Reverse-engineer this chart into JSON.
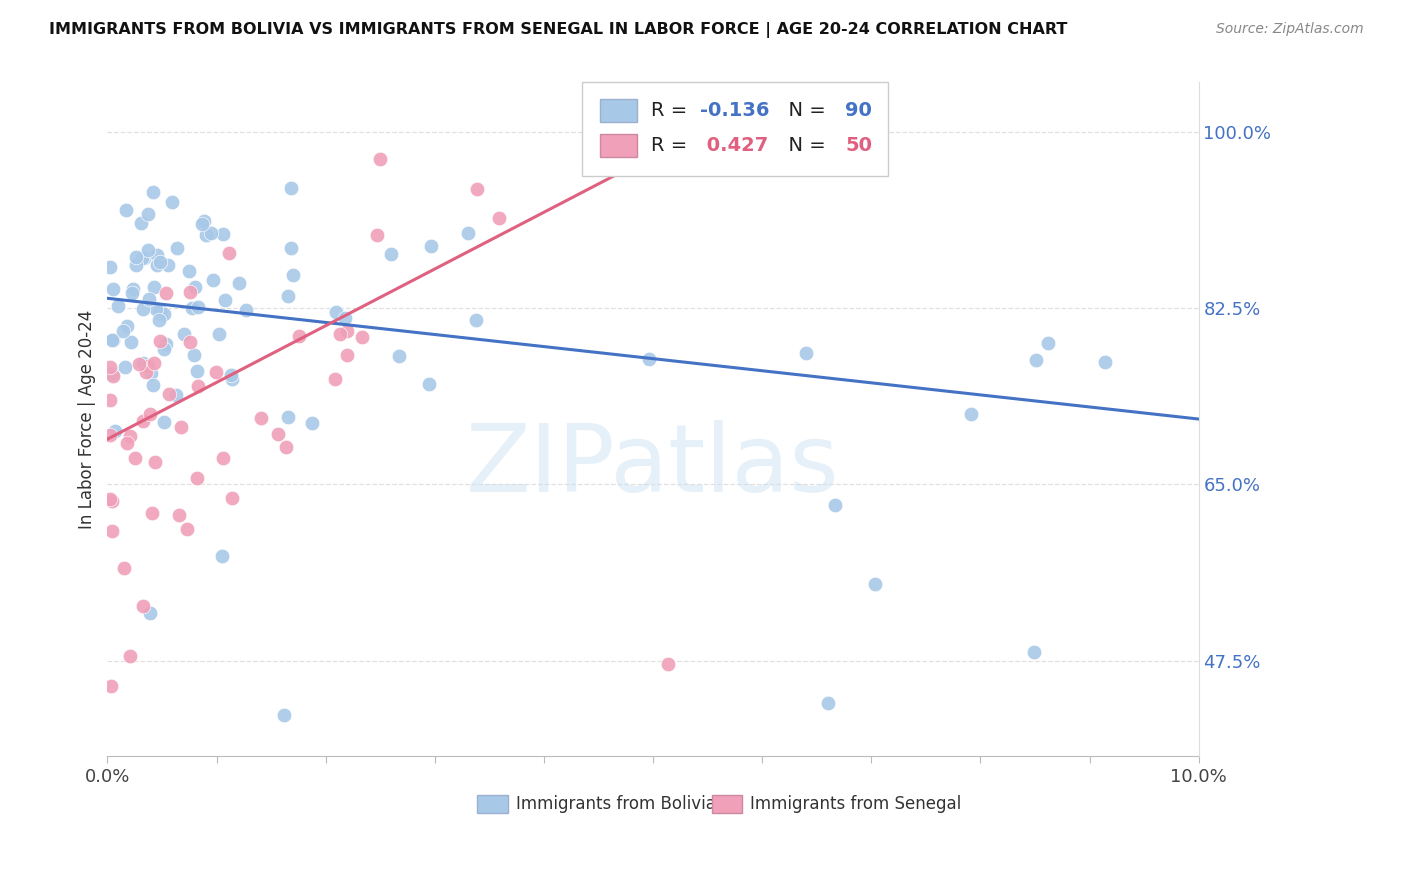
{
  "title": "IMMIGRANTS FROM BOLIVIA VS IMMIGRANTS FROM SENEGAL IN LABOR FORCE | AGE 20-24 CORRELATION CHART",
  "source": "Source: ZipAtlas.com",
  "ylabel": "In Labor Force | Age 20-24",
  "ytick_labels": [
    "47.5%",
    "65.0%",
    "82.5%",
    "100.0%"
  ],
  "ytick_values": [
    0.475,
    0.65,
    0.825,
    1.0
  ],
  "bolivia_R": -0.136,
  "bolivia_N": 90,
  "senegal_R": 0.427,
  "senegal_N": 50,
  "color_bolivia": "#a8c8e8",
  "color_senegal": "#f0a0b8",
  "color_bolivia_line": "#4472c4",
  "color_senegal_line": "#e06080",
  "watermark": "ZIPatlas",
  "xlim": [
    0.0,
    0.1
  ],
  "ylim": [
    0.38,
    1.05
  ],
  "bolivia_line_x": [
    0.0,
    0.1
  ],
  "bolivia_line_y": [
    0.835,
    0.715
  ],
  "senegal_line_x": [
    0.0,
    0.055
  ],
  "senegal_line_y": [
    0.695,
    1.005
  ]
}
